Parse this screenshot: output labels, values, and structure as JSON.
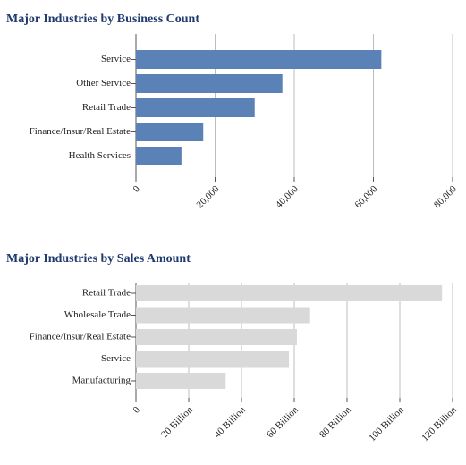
{
  "chart_data": [
    {
      "type": "bar",
      "orientation": "horizontal",
      "title": "Major Industries by Business Count",
      "categories": [
        "Service",
        "Other Service",
        "Retail Trade",
        "Finance/Insur/Real Estate",
        "Health Services"
      ],
      "values": [
        62000,
        37000,
        30000,
        17000,
        11500
      ],
      "color": "#5b82b6",
      "xlim": [
        0,
        80000
      ],
      "xticks": [
        0,
        {
          "value": 20000,
          "label": "20,000"
        },
        {
          "value": 40000,
          "label": "40,000"
        },
        {
          "value": 60000,
          "label": "60,000"
        },
        {
          "value": 80000,
          "label": "80,000"
        }
      ],
      "grid": true
    },
    {
      "type": "bar",
      "orientation": "horizontal",
      "title": "Major Industries by Sales Amount",
      "categories": [
        "Retail Trade",
        "Wholesale Trade",
        "Finance/Insur/Real Estate",
        "Service",
        "Manufacturing"
      ],
      "values": [
        116000000000,
        66000000000,
        61000000000,
        58000000000,
        34000000000
      ],
      "color": "#d9d9d9",
      "xlim": [
        0,
        120000000000
      ],
      "xticks": [
        0,
        {
          "value": 20000000000,
          "label": "20 Billion"
        },
        {
          "value": 40000000000,
          "label": "40 Billion"
        },
        {
          "value": 60000000000,
          "label": "60 Billion"
        },
        {
          "value": 80000000000,
          "label": "80 Billion"
        },
        {
          "value": 100000000000,
          "label": "100 Billion"
        },
        {
          "value": 120000000000,
          "label": "120 Billion"
        }
      ],
      "grid": true
    }
  ]
}
